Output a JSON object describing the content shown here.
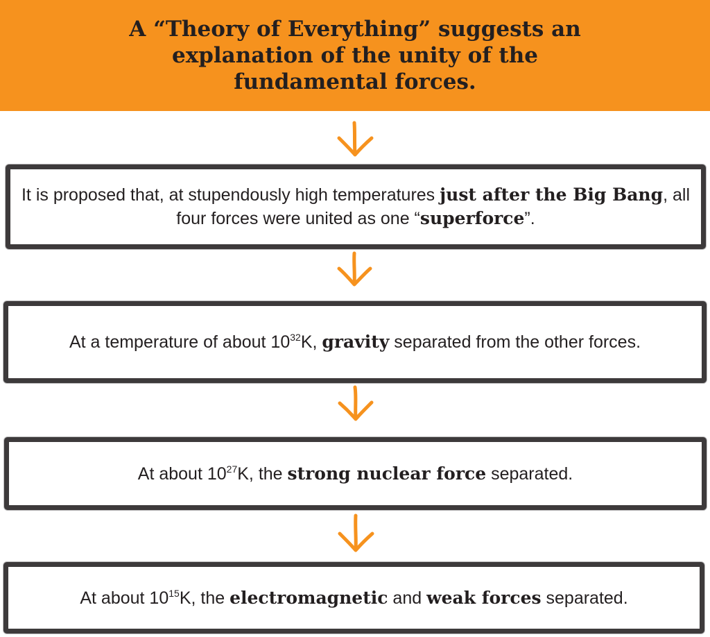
{
  "header": {
    "title": "A “Theory of Everything” suggests an explanation of the unity of the fundamental forces."
  },
  "steps": [
    {
      "parts": [
        {
          "text": "It is proposed that, at stupendously high temperatures "
        },
        {
          "text": "just after the Big Bang",
          "bold": true
        },
        {
          "text": ", all four forces were united as one “"
        },
        {
          "text": "superforce",
          "bold": true
        },
        {
          "text": "”."
        }
      ]
    },
    {
      "parts": [
        {
          "text": "At a temperature of about 10"
        },
        {
          "text": "32",
          "sup": true
        },
        {
          "text": "K, "
        },
        {
          "text": "gravity",
          "bold": true
        },
        {
          "text": " separated from the other forces."
        }
      ]
    },
    {
      "parts": [
        {
          "text": "At about 10"
        },
        {
          "text": "27",
          "sup": true
        },
        {
          "text": "K, the "
        },
        {
          "text": "strong nuclear force",
          "bold": true
        },
        {
          "text": " separated."
        }
      ]
    },
    {
      "parts": [
        {
          "text": "At about 10"
        },
        {
          "text": "15",
          "sup": true
        },
        {
          "text": "K, the "
        },
        {
          "text": "electromagnetic",
          "bold": true
        },
        {
          "text": " and "
        },
        {
          "text": "weak forces",
          "bold": true
        },
        {
          "text": " separated."
        }
      ]
    }
  ],
  "colors": {
    "header_bg": "#f6921e",
    "arrow": "#f6921e",
    "box_border": "#3d3a3b",
    "text": "#231f20"
  },
  "icons": {
    "arrow": "down-arrow-icon"
  }
}
